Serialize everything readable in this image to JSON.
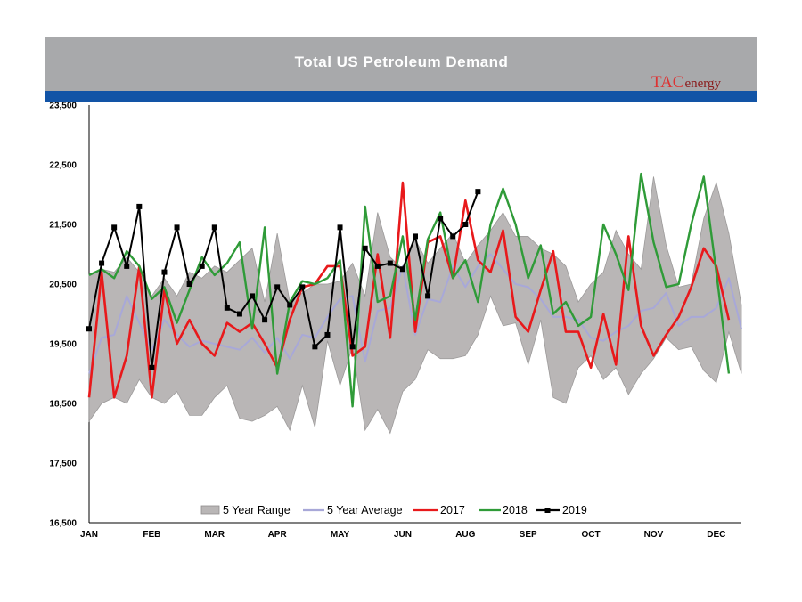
{
  "brand": {
    "logo_text": "TAC",
    "logo_suffix": "energy"
  },
  "colors": {
    "band": "#b9b6b6",
    "avg": "#a8a8d8",
    "y2017": "#e8191b",
    "y2018": "#2f9b38",
    "y2019": "#000000",
    "header": "#a8a9ab",
    "header_bar": "#1254a6"
  },
  "chart_data": {
    "type": "line",
    "title": "Total US Petroleum Demand",
    "ylim": [
      16500,
      23500
    ],
    "yticks": [
      16500,
      17500,
      18500,
      19500,
      20500,
      21500,
      22500,
      23500
    ],
    "ytick_labels": [
      "16,500",
      "17,500",
      "18,500",
      "19,500",
      "20,500",
      "21,500",
      "22,500",
      "23,500"
    ],
    "xlim": [
      1,
      53
    ],
    "month_labels": [
      "JAN",
      "FEB",
      "MAR",
      "APR",
      "MAY",
      "JUN",
      "AUG",
      "SEP",
      "OCT",
      "NOV",
      "DEC"
    ],
    "month_label_weeks": [
      1,
      6,
      11,
      16,
      21,
      26,
      31,
      36,
      41,
      46,
      51
    ],
    "series": [
      {
        "name": "5 Year Range",
        "kind": "band",
        "lower": [
          18200,
          18500,
          18600,
          18500,
          18900,
          18600,
          18500,
          18700,
          18300,
          18300,
          18600,
          18800,
          18250,
          18200,
          18300,
          18450,
          18050,
          18800,
          18100,
          19550,
          18800,
          19450,
          18050,
          18400,
          18000,
          18700,
          18900,
          19400,
          19250,
          19250,
          19300,
          19650,
          20300,
          19800,
          19850,
          19150,
          19900,
          18600,
          18500,
          19100,
          19300,
          18900,
          19100,
          18650,
          19000,
          19250,
          19600,
          19400,
          19450,
          19050,
          18850,
          19700,
          19000
        ],
        "upper": [
          20650,
          20750,
          20700,
          20950,
          20700,
          20300,
          20600,
          20300,
          20700,
          20600,
          20800,
          20700,
          20900,
          21100,
          20200,
          21350,
          20200,
          20350,
          20500,
          20500,
          20550,
          20850,
          20300,
          21700,
          20950,
          20750,
          21250,
          20850,
          21100,
          21350,
          20850,
          21150,
          21400,
          21700,
          21300,
          21300,
          21100,
          21000,
          20800,
          20200,
          20500,
          20700,
          21400,
          21000,
          20750,
          22300,
          21150,
          20450,
          20500,
          21600,
          22200,
          21350,
          20150
        ]
      },
      {
        "name": "5 Year Average",
        "kind": "line",
        "values": [
          19000,
          19600,
          19650,
          20300,
          19850,
          19400,
          19900,
          19650,
          19450,
          19550,
          19500,
          19450,
          19400,
          19600,
          19350,
          19600,
          19250,
          19650,
          19600,
          19950,
          20250,
          20300,
          19200,
          20050,
          20100,
          20800,
          19650,
          20250,
          20200,
          20800,
          20450,
          20800,
          21000,
          20750,
          20500,
          20450,
          20250,
          19950,
          19950,
          19900,
          19600,
          19550,
          19700,
          19800,
          20050,
          20100,
          20350,
          19800,
          19950,
          19950,
          20100,
          20600,
          19750
        ]
      },
      {
        "name": "2017",
        "kind": "line",
        "values": [
          18600,
          20700,
          18600,
          19300,
          20800,
          18600,
          20400,
          19500,
          19900,
          19500,
          19300,
          19850,
          19700,
          19850,
          19500,
          19100,
          19900,
          20450,
          20500,
          20800,
          20800,
          19300,
          19450,
          21000,
          19600,
          22200,
          19700,
          21200,
          21300,
          20600,
          21900,
          20900,
          20700,
          21400,
          19950,
          19700,
          20400,
          21050,
          19700,
          19700,
          19100,
          20000,
          19150,
          21300,
          19800,
          19300,
          19650,
          19950,
          20450,
          21100,
          20800,
          19900
        ]
      },
      {
        "name": "2018",
        "kind": "line",
        "values": [
          20650,
          20750,
          20600,
          21050,
          20800,
          20250,
          20450,
          19850,
          20400,
          20950,
          20650,
          20850,
          21200,
          19750,
          21450,
          19000,
          20200,
          20550,
          20500,
          20600,
          20900,
          18450,
          21800,
          20200,
          20300,
          21300,
          19900,
          21250,
          21700,
          20600,
          20900,
          20200,
          21500,
          22100,
          21500,
          20600,
          21150,
          20000,
          20200,
          19800,
          19950,
          21500,
          21000,
          20400,
          22350,
          21200,
          20450,
          20500,
          21500,
          22300,
          20700,
          19000
        ]
      },
      {
        "name": "2019",
        "kind": "line",
        "values": [
          19750,
          20850,
          21450,
          20800,
          21800,
          19100,
          20700,
          21450,
          20500,
          20800,
          21450,
          20100,
          20000,
          20300,
          19900,
          20450,
          20150,
          20450,
          19450,
          19650,
          21450,
          19450,
          21100,
          20800,
          20850,
          20750,
          21300,
          20300,
          21600,
          21300,
          21500,
          22050
        ]
      }
    ]
  }
}
